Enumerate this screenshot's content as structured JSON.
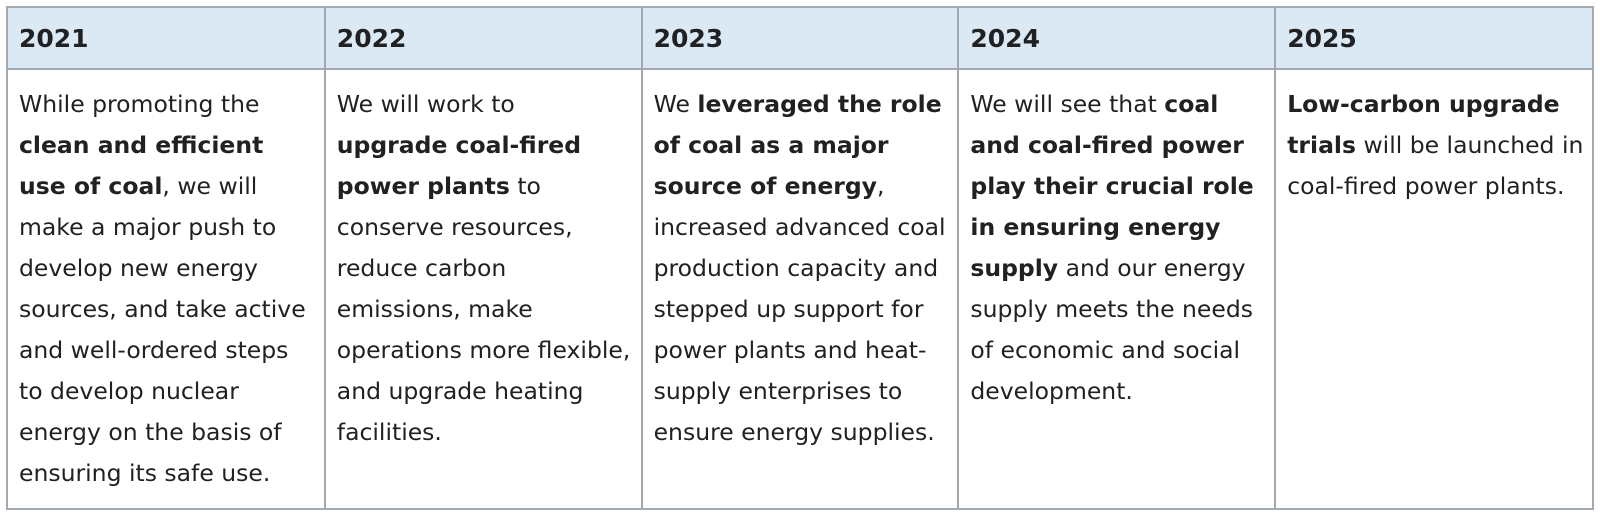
{
  "table": {
    "headers": [
      "2021",
      "2022",
      "2023",
      "2024",
      "2025"
    ],
    "cells": [
      [
        {
          "text": "While promoting the ",
          "bold": false
        },
        {
          "text": "clean and efficient use of coal",
          "bold": true
        },
        {
          "text": ", we will make a major push to develop new energy sources, and take active and well-ordered steps to develop nuclear energy on the basis of ensuring its safe use.",
          "bold": false
        }
      ],
      [
        {
          "text": "We will work to ",
          "bold": false
        },
        {
          "text": "upgrade coal-fired power plants",
          "bold": true
        },
        {
          "text": " to conserve resources, reduce carbon emissions, make operations more flexible, and upgrade heating facilities.",
          "bold": false
        }
      ],
      [
        {
          "text": "We ",
          "bold": false
        },
        {
          "text": "leveraged the role of coal as a major source of energy",
          "bold": true
        },
        {
          "text": ", increased advanced coal production capacity and stepped up support for power plants and heat-supply enterprises to ensure energy supplies.",
          "bold": false
        }
      ],
      [
        {
          "text": "We will see that ",
          "bold": false
        },
        {
          "text": "coal and coal-fired power play their crucial role in ensuring energy supply",
          "bold": true
        },
        {
          "text": " and our energy supply meets the needs of economic and social development.",
          "bold": false
        }
      ],
      [
        {
          "text": "Low-carbon upgrade trials",
          "bold": true
        },
        {
          "text": " will be launched in coal-fired power plants.",
          "bold": false
        }
      ]
    ],
    "colors": {
      "header_background": "#dbe9f5",
      "border": "#a2a9b1",
      "text": "#202122"
    }
  }
}
